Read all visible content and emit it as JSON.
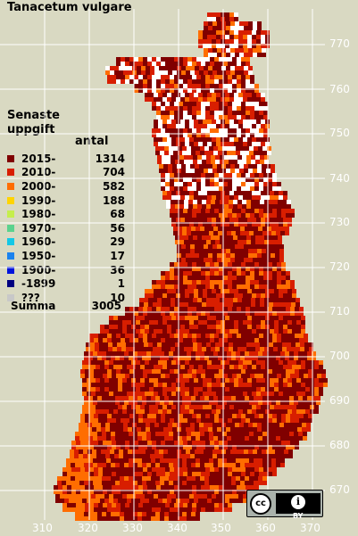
{
  "title": "Tanacetum vulgare",
  "legend": {
    "heading_line1": "Senaste",
    "heading_line2": "uppgift",
    "count_header": "antal",
    "items": [
      {
        "label": "2015-",
        "count": "1314",
        "color": "#800000"
      },
      {
        "label": "2010-",
        "count": "704",
        "color": "#d81e00"
      },
      {
        "label": "2000-",
        "count": "582",
        "color": "#ff6d00"
      },
      {
        "label": "1990-",
        "count": "188",
        "color": "#ffd400"
      },
      {
        "label": "1980-",
        "count": "68",
        "color": "#c5ee4c"
      },
      {
        "label": "1970-",
        "count": "56",
        "color": "#5bd28e"
      },
      {
        "label": "1960-",
        "count": "29",
        "color": "#14c8e6"
      },
      {
        "label": "1950-",
        "count": "17",
        "color": "#1a82ee"
      },
      {
        "label": "1900-",
        "count": "36",
        "color": "#0014dc"
      },
      {
        "label": "-1899",
        "count": "1",
        "color": "#000080"
      },
      {
        "label": "???",
        "count": "10",
        "color": "#c8c8c8"
      }
    ],
    "total_label": "Summa",
    "total_count": "3005"
  },
  "y_axis_labels": [
    "770",
    "760",
    "750",
    "740",
    "730",
    "720",
    "710",
    "700",
    "690",
    "680",
    "670"
  ],
  "x_axis_labels": [
    "310",
    "320",
    "330",
    "340",
    "350",
    "360",
    "370"
  ],
  "license": {
    "cc": "cc",
    "by_symbol": "i",
    "by_text": "BY"
  },
  "colors": {
    "background": "#d9d9c2",
    "grid_line": "#ffffff"
  }
}
